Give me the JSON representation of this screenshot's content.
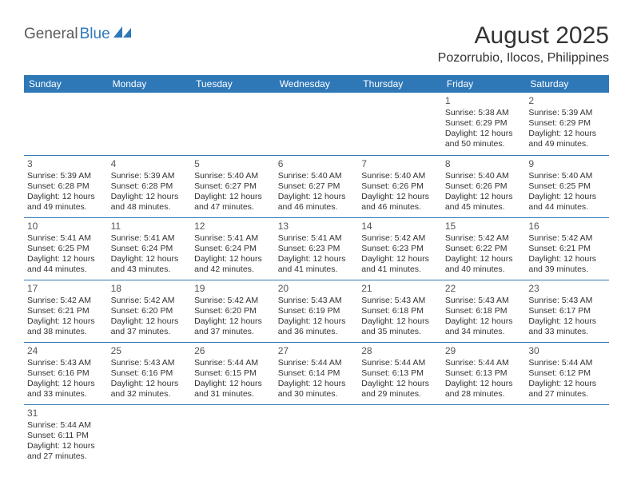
{
  "logo": {
    "textA": "General",
    "textB": "Blue",
    "shape_color": "#2f78b8",
    "textA_color": "#5a5a5a",
    "textB_color": "#2f78b8"
  },
  "title": {
    "month": "August 2025",
    "location": "Pozorrubio, Ilocos, Philippines"
  },
  "colors": {
    "header_bg": "#2f78b8",
    "header_fg": "#ffffff",
    "border": "#2f78b8",
    "text": "#333333"
  },
  "weekdays": [
    "Sunday",
    "Monday",
    "Tuesday",
    "Wednesday",
    "Thursday",
    "Friday",
    "Saturday"
  ],
  "weeks": [
    [
      null,
      null,
      null,
      null,
      null,
      {
        "day": "1",
        "sunrise": "Sunrise: 5:38 AM",
        "sunset": "Sunset: 6:29 PM",
        "daylight": "Daylight: 12 hours and 50 minutes."
      },
      {
        "day": "2",
        "sunrise": "Sunrise: 5:39 AM",
        "sunset": "Sunset: 6:29 PM",
        "daylight": "Daylight: 12 hours and 49 minutes."
      }
    ],
    [
      {
        "day": "3",
        "sunrise": "Sunrise: 5:39 AM",
        "sunset": "Sunset: 6:28 PM",
        "daylight": "Daylight: 12 hours and 49 minutes."
      },
      {
        "day": "4",
        "sunrise": "Sunrise: 5:39 AM",
        "sunset": "Sunset: 6:28 PM",
        "daylight": "Daylight: 12 hours and 48 minutes."
      },
      {
        "day": "5",
        "sunrise": "Sunrise: 5:40 AM",
        "sunset": "Sunset: 6:27 PM",
        "daylight": "Daylight: 12 hours and 47 minutes."
      },
      {
        "day": "6",
        "sunrise": "Sunrise: 5:40 AM",
        "sunset": "Sunset: 6:27 PM",
        "daylight": "Daylight: 12 hours and 46 minutes."
      },
      {
        "day": "7",
        "sunrise": "Sunrise: 5:40 AM",
        "sunset": "Sunset: 6:26 PM",
        "daylight": "Daylight: 12 hours and 46 minutes."
      },
      {
        "day": "8",
        "sunrise": "Sunrise: 5:40 AM",
        "sunset": "Sunset: 6:26 PM",
        "daylight": "Daylight: 12 hours and 45 minutes."
      },
      {
        "day": "9",
        "sunrise": "Sunrise: 5:40 AM",
        "sunset": "Sunset: 6:25 PM",
        "daylight": "Daylight: 12 hours and 44 minutes."
      }
    ],
    [
      {
        "day": "10",
        "sunrise": "Sunrise: 5:41 AM",
        "sunset": "Sunset: 6:25 PM",
        "daylight": "Daylight: 12 hours and 44 minutes."
      },
      {
        "day": "11",
        "sunrise": "Sunrise: 5:41 AM",
        "sunset": "Sunset: 6:24 PM",
        "daylight": "Daylight: 12 hours and 43 minutes."
      },
      {
        "day": "12",
        "sunrise": "Sunrise: 5:41 AM",
        "sunset": "Sunset: 6:24 PM",
        "daylight": "Daylight: 12 hours and 42 minutes."
      },
      {
        "day": "13",
        "sunrise": "Sunrise: 5:41 AM",
        "sunset": "Sunset: 6:23 PM",
        "daylight": "Daylight: 12 hours and 41 minutes."
      },
      {
        "day": "14",
        "sunrise": "Sunrise: 5:42 AM",
        "sunset": "Sunset: 6:23 PM",
        "daylight": "Daylight: 12 hours and 41 minutes."
      },
      {
        "day": "15",
        "sunrise": "Sunrise: 5:42 AM",
        "sunset": "Sunset: 6:22 PM",
        "daylight": "Daylight: 12 hours and 40 minutes."
      },
      {
        "day": "16",
        "sunrise": "Sunrise: 5:42 AM",
        "sunset": "Sunset: 6:21 PM",
        "daylight": "Daylight: 12 hours and 39 minutes."
      }
    ],
    [
      {
        "day": "17",
        "sunrise": "Sunrise: 5:42 AM",
        "sunset": "Sunset: 6:21 PM",
        "daylight": "Daylight: 12 hours and 38 minutes."
      },
      {
        "day": "18",
        "sunrise": "Sunrise: 5:42 AM",
        "sunset": "Sunset: 6:20 PM",
        "daylight": "Daylight: 12 hours and 37 minutes."
      },
      {
        "day": "19",
        "sunrise": "Sunrise: 5:42 AM",
        "sunset": "Sunset: 6:20 PM",
        "daylight": "Daylight: 12 hours and 37 minutes."
      },
      {
        "day": "20",
        "sunrise": "Sunrise: 5:43 AM",
        "sunset": "Sunset: 6:19 PM",
        "daylight": "Daylight: 12 hours and 36 minutes."
      },
      {
        "day": "21",
        "sunrise": "Sunrise: 5:43 AM",
        "sunset": "Sunset: 6:18 PM",
        "daylight": "Daylight: 12 hours and 35 minutes."
      },
      {
        "day": "22",
        "sunrise": "Sunrise: 5:43 AM",
        "sunset": "Sunset: 6:18 PM",
        "daylight": "Daylight: 12 hours and 34 minutes."
      },
      {
        "day": "23",
        "sunrise": "Sunrise: 5:43 AM",
        "sunset": "Sunset: 6:17 PM",
        "daylight": "Daylight: 12 hours and 33 minutes."
      }
    ],
    [
      {
        "day": "24",
        "sunrise": "Sunrise: 5:43 AM",
        "sunset": "Sunset: 6:16 PM",
        "daylight": "Daylight: 12 hours and 33 minutes."
      },
      {
        "day": "25",
        "sunrise": "Sunrise: 5:43 AM",
        "sunset": "Sunset: 6:16 PM",
        "daylight": "Daylight: 12 hours and 32 minutes."
      },
      {
        "day": "26",
        "sunrise": "Sunrise: 5:44 AM",
        "sunset": "Sunset: 6:15 PM",
        "daylight": "Daylight: 12 hours and 31 minutes."
      },
      {
        "day": "27",
        "sunrise": "Sunrise: 5:44 AM",
        "sunset": "Sunset: 6:14 PM",
        "daylight": "Daylight: 12 hours and 30 minutes."
      },
      {
        "day": "28",
        "sunrise": "Sunrise: 5:44 AM",
        "sunset": "Sunset: 6:13 PM",
        "daylight": "Daylight: 12 hours and 29 minutes."
      },
      {
        "day": "29",
        "sunrise": "Sunrise: 5:44 AM",
        "sunset": "Sunset: 6:13 PM",
        "daylight": "Daylight: 12 hours and 28 minutes."
      },
      {
        "day": "30",
        "sunrise": "Sunrise: 5:44 AM",
        "sunset": "Sunset: 6:12 PM",
        "daylight": "Daylight: 12 hours and 27 minutes."
      }
    ],
    [
      {
        "day": "31",
        "sunrise": "Sunrise: 5:44 AM",
        "sunset": "Sunset: 6:11 PM",
        "daylight": "Daylight: 12 hours and 27 minutes."
      },
      null,
      null,
      null,
      null,
      null,
      null
    ]
  ]
}
